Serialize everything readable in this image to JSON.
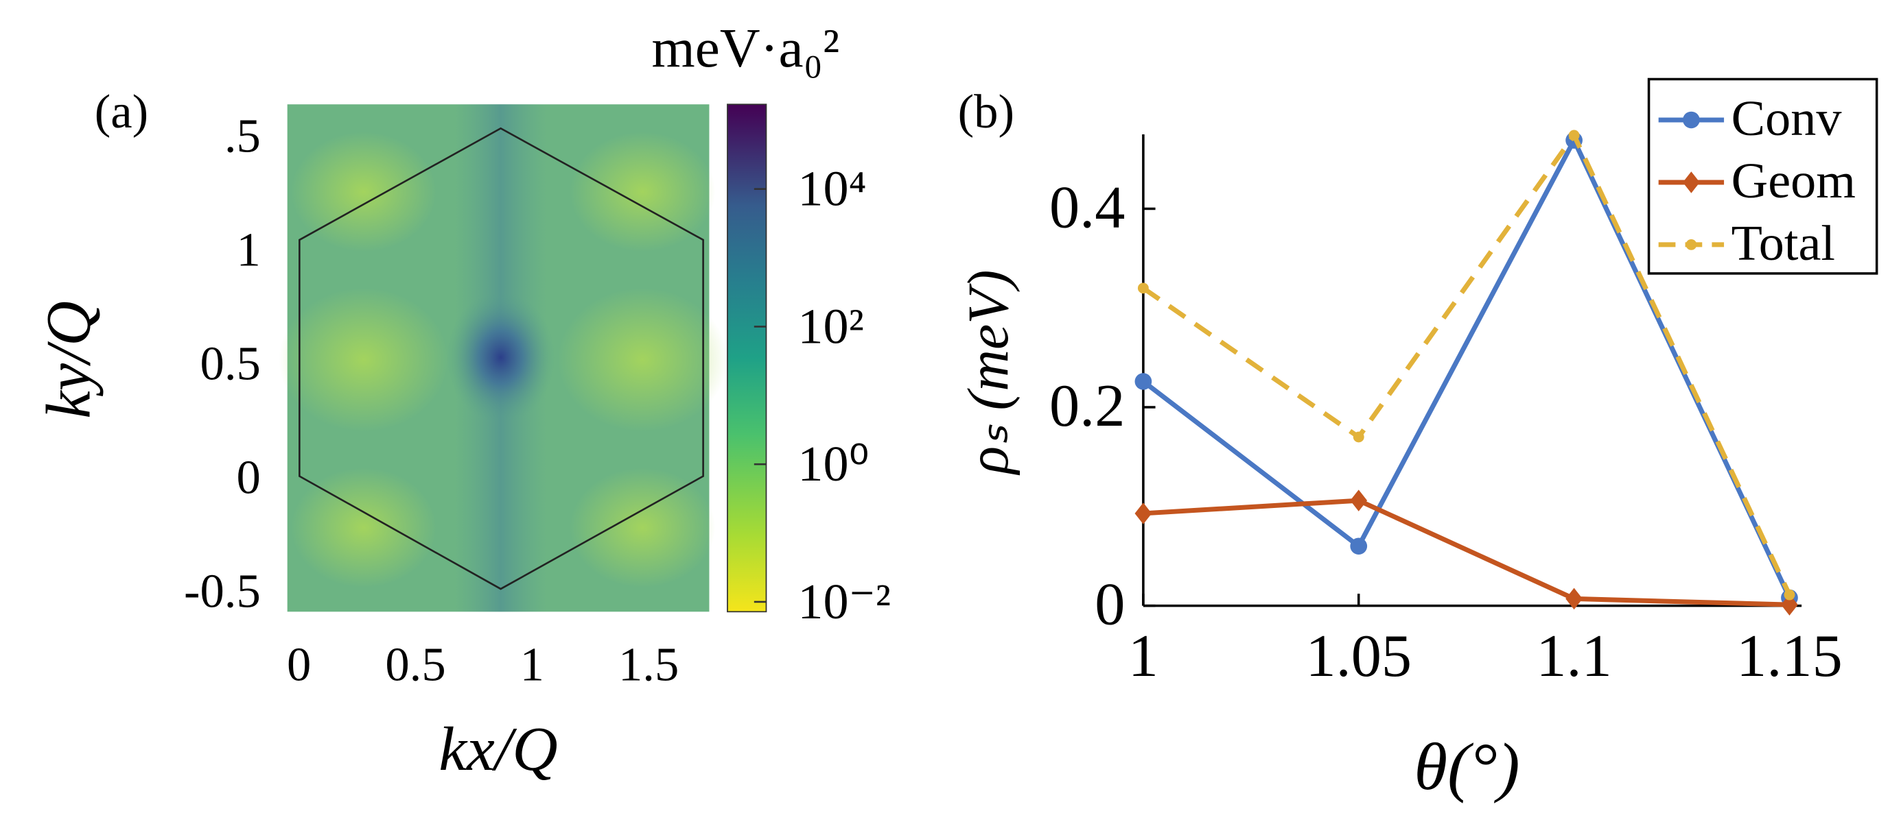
{
  "chart_data": [
    {
      "type": "heatmap",
      "panel_label": "(a)",
      "xlabel": "kx/Q",
      "ylabel": "ky/Q",
      "xlim": [
        -0.05,
        1.76
      ],
      "xticks": [
        0,
        0.5,
        1,
        1.5
      ],
      "ylim": [
        -0.59,
        1.64
      ],
      "yticks": [
        {
          "value": 1.5,
          "label": ".5"
        },
        1,
        0.5,
        0,
        -0.5
      ],
      "colorbar": {
        "label": "meV·a₀²",
        "log": true,
        "lim": [
          0.0072,
          170000
        ],
        "ticks": [
          {
            "value": 10000,
            "label": "10⁴"
          },
          {
            "value": 100,
            "label": "10²"
          },
          {
            "value": 1,
            "label": "10⁰"
          },
          {
            "value": 0.01,
            "label": "10⁻²"
          }
        ]
      }
    },
    {
      "type": "line",
      "panel_label": "(b)",
      "xlabel": "θ(°)",
      "ylabel": "ρₛ (meV)",
      "x": [
        1,
        1.05,
        1.1,
        1.15
      ],
      "xticks": [
        1,
        1.05,
        1.1,
        1.15
      ],
      "xlim": [
        1,
        1.15
      ],
      "ylim": [
        0,
        0.475
      ],
      "yticks": [
        0,
        0.2,
        0.4
      ],
      "legend": "upper right",
      "series": [
        {
          "name": "Conv",
          "color": "#4a78c4",
          "marker": "circle",
          "values": [
            0.226,
            0.06,
            0.469,
            0.008
          ]
        },
        {
          "name": "Geom",
          "color": "#c4551f",
          "marker": "diamond",
          "values": [
            0.093,
            0.106,
            0.007,
            0.001
          ]
        },
        {
          "name": "Total",
          "color": "#e2b23a",
          "marker": "dot",
          "dashed": true,
          "values": [
            0.32,
            0.17,
            0.474,
            0.011
          ]
        }
      ]
    }
  ]
}
